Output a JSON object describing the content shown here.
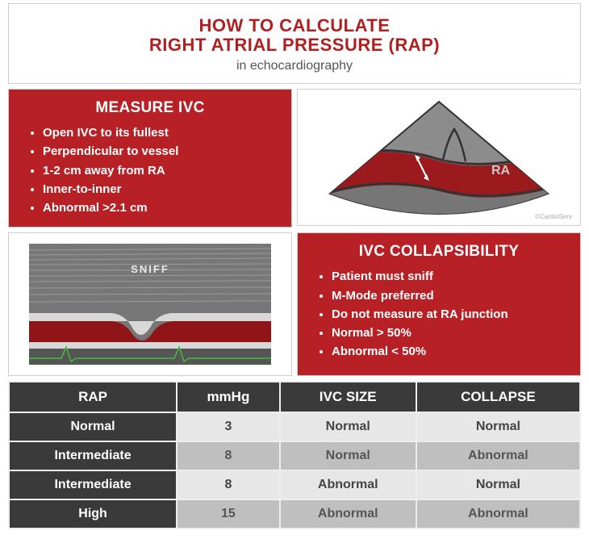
{
  "colors": {
    "accent_red": "#b72025",
    "header_red": "#b02020",
    "panel_border": "#cfcfcf",
    "table_header_bg": "#3a3a3a",
    "row_light": "#e7e7e7",
    "row_mid": "#bfbfbf",
    "text_gray": "#555555",
    "ecg_green": "#3fbf3f",
    "mmode_line": "#8a8a8a",
    "diagram_fan_gray": "#8c8c8c",
    "diagram_dark_stroke": "#333333"
  },
  "header": {
    "line1": "HOW TO CALCULATE",
    "line2": "RIGHT ATRIAL PRESSURE (RAP)",
    "subtitle": "in echocardiography"
  },
  "measure_ivc": {
    "title": "MEASURE IVC",
    "items": [
      "Open IVC to its fullest",
      "Perpendicular to vessel",
      "1-2 cm away from RA",
      "Inner-to-inner",
      "Abnormal >2.1 cm"
    ]
  },
  "ivc_diagram": {
    "ra_label": "RA",
    "credit": "©CardioServ"
  },
  "mmode": {
    "sniff_label": "SNIFF"
  },
  "collapsibility": {
    "title": "IVC COLLAPSIBILITY",
    "items": [
      "Patient must sniff",
      "M-Mode preferred",
      "Do not measure at RA junction",
      "Normal > 50%",
      "Abnormal < 50%"
    ]
  },
  "table": {
    "columns": [
      "RAP",
      "mmHg",
      "IVC SIZE",
      "COLLAPSE"
    ],
    "rows": [
      {
        "shade": "light",
        "cells": [
          "Normal",
          "3",
          "Normal",
          "Normal"
        ]
      },
      {
        "shade": "mid",
        "cells": [
          "Intermediate",
          "8",
          "Normal",
          "Abnormal"
        ]
      },
      {
        "shade": "light",
        "cells": [
          "Intermediate",
          "8",
          "Abnormal",
          "Normal"
        ]
      },
      {
        "shade": "mid",
        "cells": [
          "High",
          "15",
          "Abnormal",
          "Abnormal"
        ]
      }
    ]
  }
}
